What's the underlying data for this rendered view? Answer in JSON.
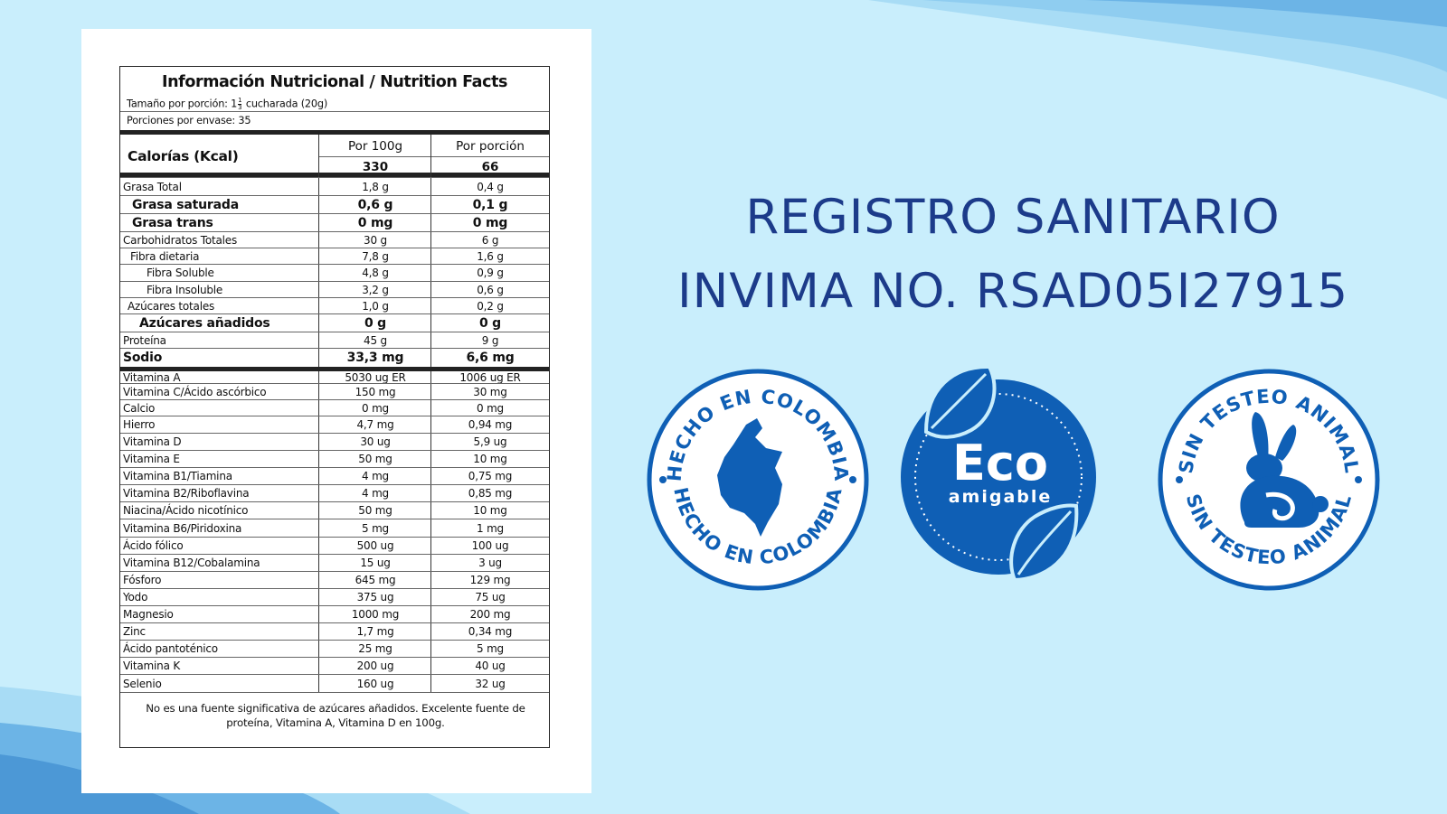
{
  "nutrition": {
    "title": "Información Nutricional / Nutrition Facts",
    "serving_prefix": "Tamaño por porción: 1",
    "serving_frac_num": "1",
    "serving_frac_den": "3",
    "serving_suffix": " cucharada (20g)",
    "servings": "Porciones por envase: 35",
    "calories_label": "Calorías (Kcal)",
    "col1_header": "Por 100g",
    "col2_header": "Por porción",
    "cal_100g": "330",
    "cal_portion": "66",
    "rows": [
      {
        "label": "Grasa Total",
        "v1": "1,8 g",
        "v2": "0,4 g"
      },
      {
        "label": "Grasa saturada",
        "v1": "0,6 g",
        "v2": "0,1 g"
      },
      {
        "label": "Grasa trans",
        "v1": "0 mg",
        "v2": "0 mg"
      },
      {
        "label": "Carbohidratos Totales",
        "v1": "30 g",
        "v2": "6 g"
      },
      {
        "label": "Fibra dietaria",
        "v1": "7,8 g",
        "v2": "1,6 g"
      },
      {
        "label": "Fibra Soluble",
        "v1": "4,8 g",
        "v2": "0,9 g"
      },
      {
        "label": "Fibra Insoluble",
        "v1": "3,2 g",
        "v2": "0,6 g"
      },
      {
        "label": "Azúcares totales",
        "v1": "1,0 g",
        "v2": "0,2 g"
      },
      {
        "label": "Azúcares añadidos",
        "v1": "0 g",
        "v2": "0 g"
      },
      {
        "label": "Proteína",
        "v1": "45 g",
        "v2": "9 g"
      },
      {
        "label": "Sodio",
        "v1": "33,3 mg",
        "v2": "6,6 mg"
      },
      {
        "label": "Vitamina A",
        "v1": "5030 ug ER",
        "v2": "1006 ug ER"
      },
      {
        "label": "Vitamina C/Ácido ascórbico",
        "v1": "150 mg",
        "v2": "30 mg"
      },
      {
        "label": "Calcio",
        "v1": "0 mg",
        "v2": "0 mg"
      },
      {
        "label": "Hierro",
        "v1": "4,7 mg",
        "v2": "0,94 mg"
      },
      {
        "label": "Vitamina D",
        "v1": "30 ug",
        "v2": "5,9 ug"
      },
      {
        "label": "Vitamina E",
        "v1": "50 mg",
        "v2": "10 mg"
      },
      {
        "label": "Vitamina B1/Tiamina",
        "v1": "4 mg",
        "v2": "0,75 mg"
      },
      {
        "label": "Vitamina B2/Riboflavina",
        "v1": "4 mg",
        "v2": "0,85 mg"
      },
      {
        "label": "Niacina/Ácido nicotínico",
        "v1": "50 mg",
        "v2": "10 mg"
      },
      {
        "label": "Vitamina B6/Piridoxina",
        "v1": "5 mg",
        "v2": "1 mg"
      },
      {
        "label": "Ácido fólico",
        "v1": "500 ug",
        "v2": "100 ug"
      },
      {
        "label": "Vitamina B12/Cobalamina",
        "v1": "15 ug",
        "v2": "3 ug"
      },
      {
        "label": "Fósforo",
        "v1": "645 mg",
        "v2": "129 mg"
      },
      {
        "label": "Yodo",
        "v1": "375 ug",
        "v2": "75 ug"
      },
      {
        "label": "Magnesio",
        "v1": "1000 mg",
        "v2": "200 mg"
      },
      {
        "label": "Zinc",
        "v1": "1,7 mg",
        "v2": "0,34 mg"
      },
      {
        "label": "Ácido pantoténico",
        "v1": "25 mg",
        "v2": "5 mg"
      },
      {
        "label": "Vitamina K",
        "v1": "200 ug",
        "v2": "40 ug"
      },
      {
        "label": "Selenio",
        "v1": "160 ug",
        "v2": "32 ug"
      }
    ],
    "footnote": "No es una fuente significativa de azúcares añadidos. Excelente fuente de proteína, Vitamina A, Vitamina D en 100g."
  },
  "registro": {
    "line1": "REGISTRO SANITARIO",
    "line2": "INVIMA NO. RSAD05I27915"
  },
  "badges": {
    "colombia_top": "HECHO EN COLOMBIA",
    "colombia_bottom": "HECHO EN COLOMBIA",
    "eco_main": "Eco",
    "eco_sub": "amigable",
    "animal_top": "SIN TESTEO ANIMAL",
    "animal_bottom": "SIN TESTEO ANIMAL"
  },
  "colors": {
    "background": "#c9eefc",
    "brand_blue": "#0f5fb5",
    "title_blue": "#1c3b8a"
  }
}
